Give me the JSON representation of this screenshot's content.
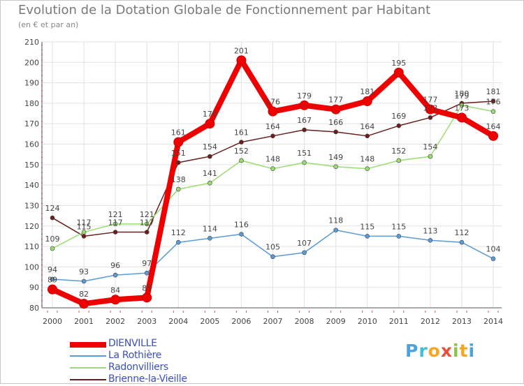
{
  "title": "Evolution de la Dotation Globale de Fonctionnement par Habitant",
  "subtitle": "(en € et par an)",
  "logo": {
    "text": "Proxiti",
    "letters": [
      "P",
      "r",
      "o",
      "x",
      "i",
      "t",
      "i"
    ],
    "colors": [
      "#4aa3df",
      "#3ec1d3",
      "#f5a623",
      "#e94e3c",
      "#8bc34a",
      "#f5a623",
      "#4aa3df"
    ]
  },
  "chart_data": {
    "type": "line",
    "title": "Evolution de la Dotation Globale de Fonctionnement par Habitant",
    "subtitle": "(en € et par an)",
    "categories": [
      "2000",
      "2001",
      "2002",
      "2003",
      "2004",
      "2005",
      "2006",
      "2007",
      "2008",
      "2009",
      "2010",
      "2011",
      "2012",
      "2013",
      "2014"
    ],
    "ylim": [
      80,
      210
    ],
    "yticks": [
      "80",
      "90",
      "100",
      "110",
      "120",
      "130",
      "140",
      "150",
      "160",
      "170",
      "180",
      "190",
      "200",
      "210"
    ],
    "grid": true,
    "legend_position": "bottom-left",
    "series": [
      {
        "name": "Brienne-la-Vieille",
        "color": "#6b1e1e",
        "values": [
          124,
          115,
          117,
          117,
          151,
          154,
          161,
          164,
          167,
          166,
          164,
          169,
          173,
          180,
          181
        ]
      },
      {
        "name": "Radonvilliers",
        "color": "#99dd6e",
        "values": [
          109,
          117,
          121,
          121,
          138,
          141,
          152,
          148,
          151,
          149,
          148,
          152,
          154,
          179,
          176
        ]
      },
      {
        "name": "La Rothière",
        "color": "#5b9bd5",
        "values": [
          94,
          93,
          96,
          97,
          112,
          114,
          116,
          105,
          107,
          118,
          115,
          115,
          113,
          112,
          104
        ]
      },
      {
        "name": "DIENVILLE",
        "color": "#ee0000",
        "values": [
          89,
          82,
          84,
          85,
          161,
          170,
          201,
          176,
          179,
          177,
          181,
          195,
          177,
          173,
          164
        ]
      }
    ]
  },
  "legend": [
    {
      "name": "DIENVILLE",
      "color": "#ee0000"
    },
    {
      "name": "La Rothière",
      "color": "#5b9bd5"
    },
    {
      "name": "Radonvilliers",
      "color": "#99dd6e"
    },
    {
      "name": "Brienne-la-Vieille",
      "color": "#6b1e1e"
    }
  ]
}
